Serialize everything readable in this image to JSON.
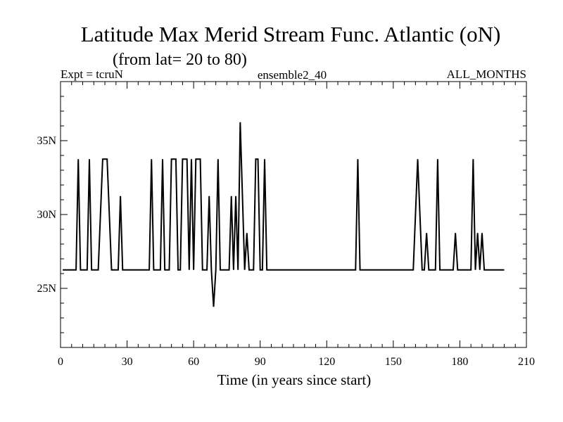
{
  "chart_data": {
    "type": "line",
    "title": "Latitude Max Merid Stream Func. Atlantic (oN)",
    "subtitle": "(from lat= 20 to 80)",
    "header_left": "Expt = tcruN",
    "header_center": "ensemble2_40",
    "header_right": "ALL_MONTHS",
    "xlabel": "Time (in years since start)",
    "ylabel": "",
    "xlim": [
      0,
      210
    ],
    "ylim": [
      21,
      39
    ],
    "x_ticks": [
      0,
      30,
      60,
      90,
      120,
      150,
      180,
      210
    ],
    "x_tick_labels": [
      "0",
      "30",
      "60",
      "90",
      "120",
      "150",
      "180",
      "210"
    ],
    "y_ticks": [
      25,
      30,
      35
    ],
    "y_tick_labels": [
      "25N",
      "30N",
      "35N"
    ],
    "grid": false,
    "series": [
      {
        "color": "#000000",
        "points": [
          [
            1,
            26.25
          ],
          [
            7,
            26.25
          ],
          [
            8,
            33.75
          ],
          [
            9,
            26.25
          ],
          [
            12,
            26.25
          ],
          [
            13,
            33.75
          ],
          [
            14,
            26.25
          ],
          [
            17,
            26.25
          ],
          [
            19,
            33.75
          ],
          [
            21,
            33.75
          ],
          [
            23,
            26.25
          ],
          [
            26,
            26.25
          ],
          [
            27,
            31.25
          ],
          [
            28,
            26.25
          ],
          [
            40,
            26.25
          ],
          [
            41,
            33.75
          ],
          [
            42,
            26.25
          ],
          [
            45,
            26.25
          ],
          [
            46,
            33.75
          ],
          [
            47,
            26.25
          ],
          [
            49,
            26.25
          ],
          [
            50,
            33.75
          ],
          [
            52,
            33.75
          ],
          [
            53,
            26.25
          ],
          [
            54,
            26.25
          ],
          [
            55,
            33.75
          ],
          [
            57,
            33.75
          ],
          [
            58,
            26.25
          ],
          [
            59,
            33.75
          ],
          [
            60,
            26.25
          ],
          [
            61,
            33.75
          ],
          [
            63,
            33.75
          ],
          [
            64,
            26.25
          ],
          [
            66,
            26.25
          ],
          [
            67,
            31.25
          ],
          [
            68,
            26.25
          ],
          [
            69,
            23.75
          ],
          [
            70,
            26.25
          ],
          [
            71,
            33.75
          ],
          [
            72,
            26.25
          ],
          [
            76,
            26.25
          ],
          [
            77,
            31.25
          ],
          [
            78,
            26.25
          ],
          [
            79,
            31.25
          ],
          [
            80,
            26.25
          ],
          [
            81,
            36.25
          ],
          [
            83,
            26.25
          ],
          [
            84,
            28.75
          ],
          [
            85,
            26.25
          ],
          [
            87,
            26.25
          ],
          [
            88,
            33.75
          ],
          [
            89,
            33.75
          ],
          [
            90,
            26.25
          ],
          [
            91,
            26.25
          ],
          [
            92,
            33.75
          ],
          [
            93,
            26.25
          ],
          [
            133,
            26.25
          ],
          [
            134,
            33.75
          ],
          [
            135,
            26.25
          ],
          [
            159,
            26.25
          ],
          [
            161,
            33.75
          ],
          [
            163,
            26.25
          ],
          [
            164,
            26.25
          ],
          [
            165,
            28.75
          ],
          [
            166,
            26.25
          ],
          [
            169,
            26.25
          ],
          [
            170,
            33.75
          ],
          [
            171,
            26.25
          ],
          [
            177,
            26.25
          ],
          [
            178,
            28.75
          ],
          [
            179,
            26.25
          ],
          [
            185,
            26.25
          ],
          [
            186,
            33.75
          ],
          [
            187,
            26.25
          ],
          [
            188,
            28.75
          ],
          [
            189,
            26.25
          ],
          [
            190,
            28.75
          ],
          [
            191,
            26.25
          ],
          [
            200,
            26.25
          ]
        ]
      }
    ]
  }
}
